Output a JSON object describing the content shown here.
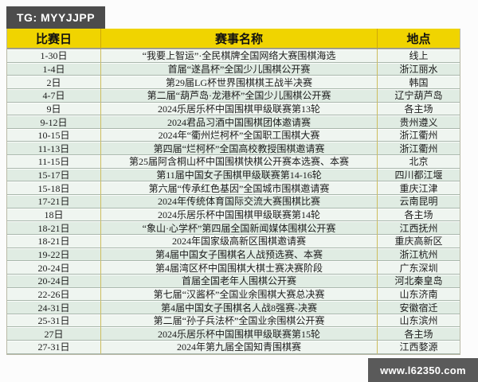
{
  "badge": {
    "label": "TG: MYYJJPP"
  },
  "site_bar": {
    "url_label": "www.l62350.com"
  },
  "colors": {
    "header_yellow": "#f0d400",
    "badge_gray": "#4c4c4c",
    "site_bar_gray": "#5a5a5a",
    "row_green": "#e0ece3",
    "row_light": "#eff5f0"
  },
  "table": {
    "headers": [
      "比赛日",
      "赛事名称",
      "地点"
    ],
    "rows": [
      {
        "date": "1-30日",
        "event": "“我要上智运”·全民棋牌全国网络大赛围棋海选",
        "location": "线上"
      },
      {
        "date": "1-4日",
        "event": "首届“遂昌杯”全国少儿围棋公开赛",
        "location": "浙江丽水"
      },
      {
        "date": "2日",
        "event": "第29届LG杯世界围棋棋王战半决赛",
        "location": "韩国"
      },
      {
        "date": "4-7日",
        "event": "第二届“葫芦岛·龙港杯”全国少儿围棋公开赛",
        "location": "辽宁葫芦岛"
      },
      {
        "date": "9日",
        "event": "2024乐居乐杯中国围棋甲级联赛第13轮",
        "location": "各主场"
      },
      {
        "date": "9-12日",
        "event": "2024君品习酒中国围棋团体邀请赛",
        "location": "贵州遵义"
      },
      {
        "date": "10-15日",
        "event": "2024年“衢州烂柯杯”全国职工围棋大赛",
        "location": "浙江衢州"
      },
      {
        "date": "11-13日",
        "event": "第四届“烂柯杯”全国高校教授围棋邀请赛",
        "location": "浙江衢州"
      },
      {
        "date": "11-15日",
        "event": "第25届阿含桐山杯中国围棋快棋公开赛本选赛、本赛",
        "location": "北京"
      },
      {
        "date": "15-17日",
        "event": "第11届中国女子围棋甲级联赛第14-16轮",
        "location": "四川都江堰"
      },
      {
        "date": "15-18日",
        "event": "第六届“传承红色基因”全国城市围棋邀请赛",
        "location": "重庆江津"
      },
      {
        "date": "17-21日",
        "event": "2024年传统体育国际交流大赛围棋比赛",
        "location": "云南昆明"
      },
      {
        "date": "18日",
        "event": "2024乐居乐杯中国围棋甲级联赛第14轮",
        "location": "各主场"
      },
      {
        "date": "18-21日",
        "event": "“象山·心学杯”第四届全国新闻媒体围棋公开赛",
        "location": "江西抚州"
      },
      {
        "date": "18-21日",
        "event": "2024年国家级高新区围棋邀请赛",
        "location": "重庆高新区"
      },
      {
        "date": "19-22日",
        "event": "第4届中国女子围棋名人战预选赛、本赛",
        "location": "浙江杭州"
      },
      {
        "date": "20-24日",
        "event": "第4届湾区杯中国围棋大棋士赛决赛阶段",
        "location": "广东深圳"
      },
      {
        "date": "20-24日",
        "event": "首届全国老年人围棋公开赛",
        "location": "河北秦皇岛"
      },
      {
        "date": "22-26日",
        "event": "第七届“汉酱杯”全国业余围棋大赛总决赛",
        "location": "山东济南"
      },
      {
        "date": "24-31日",
        "event": "第4届中国女子围棋名人战8强赛-决赛",
        "location": "安徽宿迁"
      },
      {
        "date": "25-31日",
        "event": "第二届“孙子兵法杯”全国业余围棋公开赛",
        "location": "山东滨州"
      },
      {
        "date": "27日",
        "event": "2024乐居乐杯中国围棋甲级联赛第15轮",
        "location": "各主场"
      },
      {
        "date": "27-31日",
        "event": "2024年第九届全国知青围棋赛",
        "location": "江西婺源"
      }
    ]
  }
}
